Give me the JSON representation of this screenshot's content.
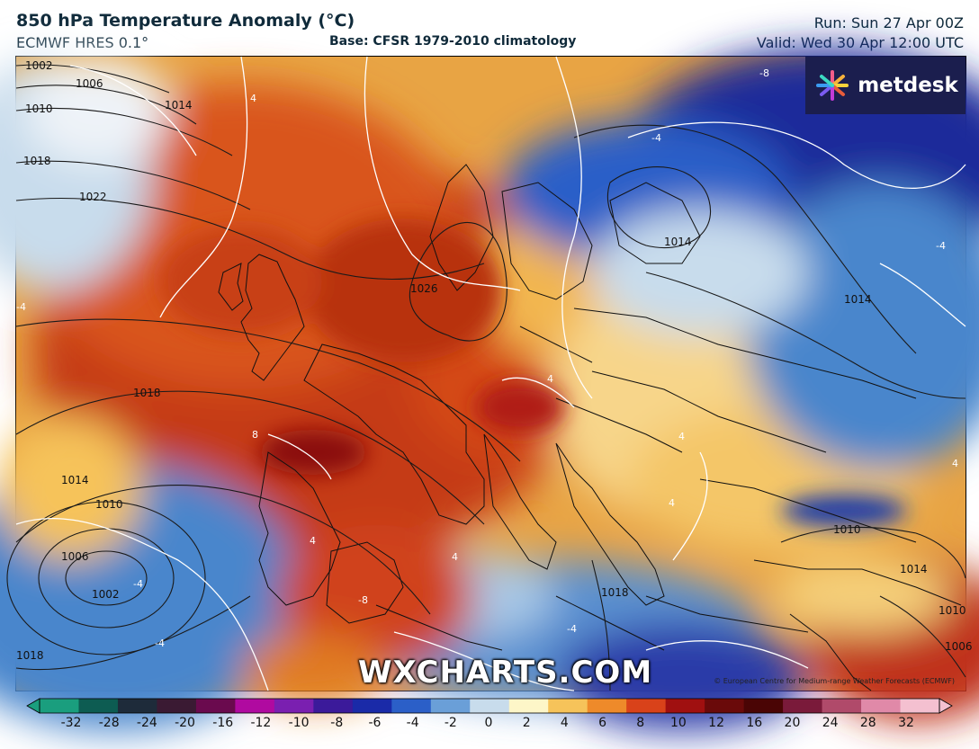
{
  "header": {
    "title": "850 hPa Temperature Anomaly (°C)",
    "model": "ECMWF HRES 0.1°",
    "base": "Base: CFSR 1979-2010 climatology",
    "run": "Run: Sun 27 Apr 00Z",
    "valid": "Valid: Wed 30 Apr 12:00 UTC"
  },
  "branding": {
    "logo_text": "metdesk",
    "watermark": "WXCHARTS.COM",
    "credit": "© European Centre for Medium-range Weather Forecasts (ECMWF)"
  },
  "map": {
    "isobar_labels": [
      "1002",
      "1006",
      "1010",
      "1014",
      "1018",
      "1022",
      "1018",
      "1026",
      "1014",
      "1010",
      "1014",
      "1014",
      "1010",
      "1006",
      "1002",
      "1018",
      "1018",
      "1014",
      "1010",
      "1006"
    ],
    "anomaly_labels": [
      "-8",
      "-4",
      "-4",
      "4",
      "4",
      "4",
      "-4",
      "8",
      "4",
      "4",
      "-8",
      "-4",
      "-4",
      "-4",
      "4",
      "4"
    ]
  },
  "colorbar": {
    "ticks": [
      "-32",
      "-28",
      "-24",
      "-20",
      "-16",
      "-12",
      "-10",
      "-8",
      "-6",
      "-4",
      "-2",
      "0",
      "2",
      "4",
      "6",
      "8",
      "10",
      "12",
      "16",
      "20",
      "24",
      "28",
      "32"
    ],
    "colors": [
      "#1a9e7e",
      "#0d5c52",
      "#1e2b3a",
      "#3a1a33",
      "#6a0a4e",
      "#b00aa0",
      "#7a1fb0",
      "#3b1a9a",
      "#1a2aa8",
      "#2b5fc8",
      "#6a9fd8",
      "#c8dcec",
      "#fdf6c8",
      "#f6c35a",
      "#ee8a2a",
      "#d9421a",
      "#a01010",
      "#6a0a0a",
      "#4a0505",
      "#7a1a3a",
      "#b04a6a",
      "#e089a8",
      "#f4c0d0"
    ]
  }
}
